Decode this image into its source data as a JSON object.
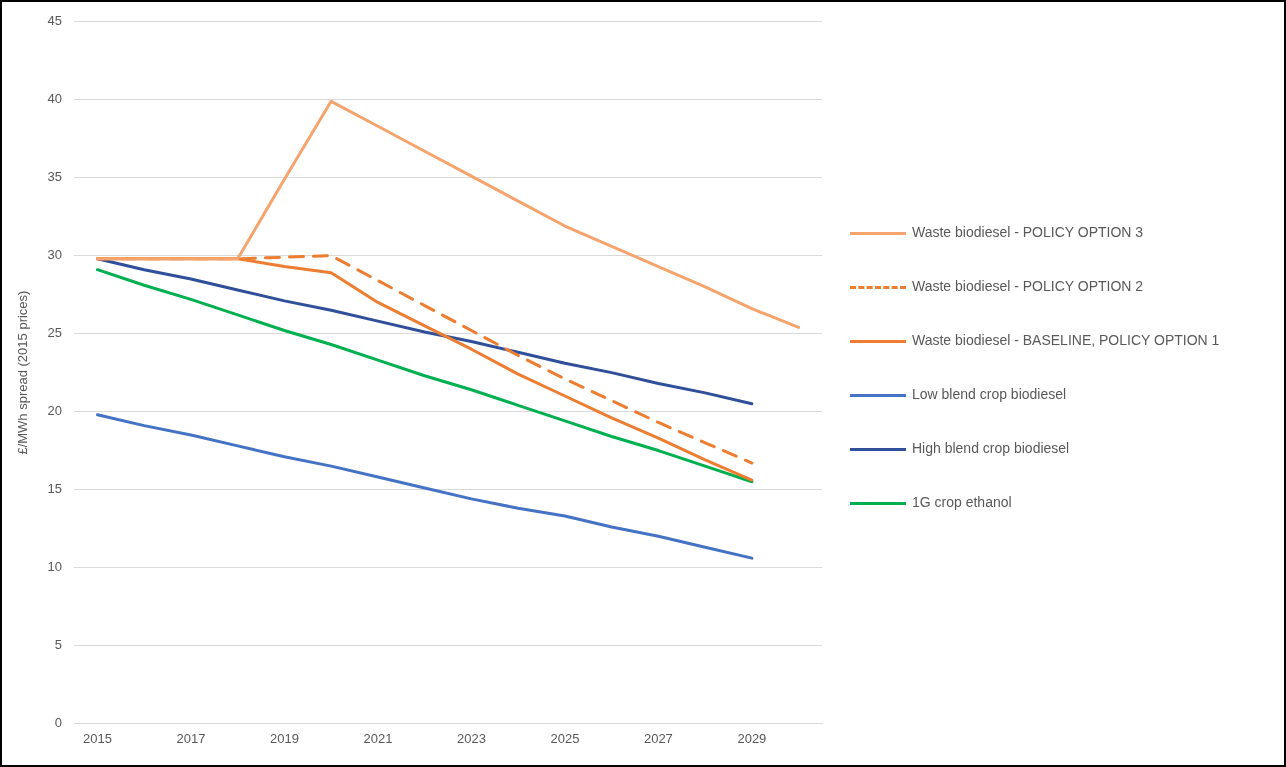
{
  "chart_data": {
    "type": "line",
    "ylabel": "£/MWh spread (2015 prices)",
    "categories": [
      "2015",
      null,
      "2017",
      null,
      "2019",
      null,
      "2021",
      null,
      "2023",
      null,
      "2025",
      null,
      "2027",
      null,
      "2029",
      null
    ],
    "ylim": [
      0,
      45
    ],
    "yticks": [
      0,
      5,
      10,
      15,
      20,
      25,
      30,
      35,
      40,
      45
    ],
    "grid": "y",
    "legend": "right",
    "marker": "none",
    "series": [
      {
        "name": "Waste biodiesel - POLICY OPTION 3",
        "color": "#f4a46c",
        "line_style": "solid",
        "values": [
          29.8,
          29.8,
          29.8,
          29.8,
          34.9,
          39.9,
          38.3,
          36.7,
          35.1,
          33.5,
          31.9,
          30.6,
          29.3,
          28.0,
          26.6,
          25.4
        ]
      },
      {
        "name": "Waste biodiesel - POLICY OPTION 2",
        "color": "#ed7d31",
        "line_style": "dashed",
        "values": [
          29.8,
          29.8,
          29.8,
          29.8,
          29.9,
          30.0,
          28.4,
          26.8,
          25.2,
          23.6,
          22.1,
          20.7,
          19.3,
          18.0,
          16.7,
          null
        ]
      },
      {
        "name": "Waste biodiesel - BASELINE, POLICY OPTION 1",
        "color": "#ed7d31",
        "line_style": "solid",
        "values": [
          29.8,
          29.8,
          29.8,
          29.8,
          29.3,
          28.9,
          27.0,
          25.5,
          24.0,
          22.4,
          21.0,
          19.6,
          18.3,
          16.9,
          15.6,
          null
        ]
      },
      {
        "name": "Low blend crop biodiesel",
        "color": "#4472c4",
        "line_style": "solid",
        "values": [
          19.8,
          19.1,
          18.5,
          17.8,
          17.1,
          16.5,
          15.8,
          15.1,
          14.4,
          13.8,
          13.3,
          12.6,
          12.0,
          11.3,
          10.6,
          null
        ]
      },
      {
        "name": "High blend crop biodiesel",
        "color": "#2f4f9a",
        "line_style": "solid",
        "values": [
          29.8,
          29.1,
          28.5,
          27.8,
          27.1,
          26.5,
          25.8,
          25.1,
          24.5,
          23.8,
          23.1,
          22.5,
          21.8,
          21.2,
          20.5,
          null
        ]
      },
      {
        "name": "1G crop ethanol",
        "color": "#00b050",
        "line_style": "solid",
        "values": [
          29.1,
          28.1,
          27.2,
          26.2,
          25.2,
          24.3,
          23.3,
          22.3,
          21.4,
          20.4,
          19.4,
          18.4,
          17.5,
          16.5,
          15.5,
          null
        ]
      }
    ]
  }
}
